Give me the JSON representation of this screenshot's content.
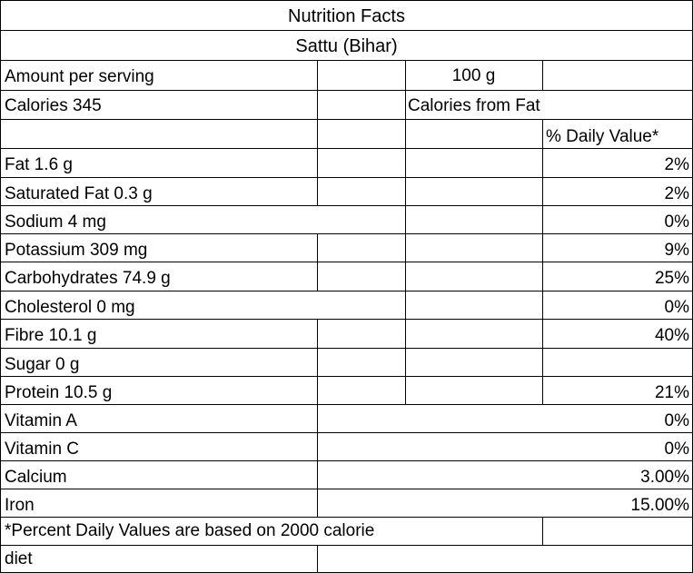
{
  "title": "Nutrition Facts",
  "subtitle": "Sattu (Bihar)",
  "amount_label": "Amount per serving",
  "serving_size": "100 g",
  "calories": "Calories 345",
  "calories_from_fat": "Calories from Fat",
  "daily_value_header": "% Daily Value*",
  "nutrients": [
    {
      "name": "Fat 1.6 g",
      "dv": "2%"
    },
    {
      "name": "Saturated Fat 0.3 g",
      "dv": "2%"
    },
    {
      "name": "Sodium 4 mg",
      "dv": "0%"
    },
    {
      "name": "Potassium 309 mg",
      "dv": "9%"
    },
    {
      "name": "Carbohydrates 74.9 g",
      "dv": "25%"
    },
    {
      "name": "Cholesterol 0 mg",
      "dv": "0%"
    },
    {
      "name": "Fibre 10.1 g",
      "dv": "40%"
    },
    {
      "name": "Sugar 0 g",
      "dv": ""
    },
    {
      "name": "Protein 10.5 g",
      "dv": "21%"
    },
    {
      "name": "Vitamin A",
      "dv": "0%"
    },
    {
      "name": "Vitamin C",
      "dv": "0%"
    },
    {
      "name": "Calcium",
      "dv": "3.00%"
    },
    {
      "name": "Iron",
      "dv": "15.00%"
    }
  ],
  "footnote_line1": "*Percent Daily Values are based on 2000 calorie",
  "footnote_line2": "diet"
}
